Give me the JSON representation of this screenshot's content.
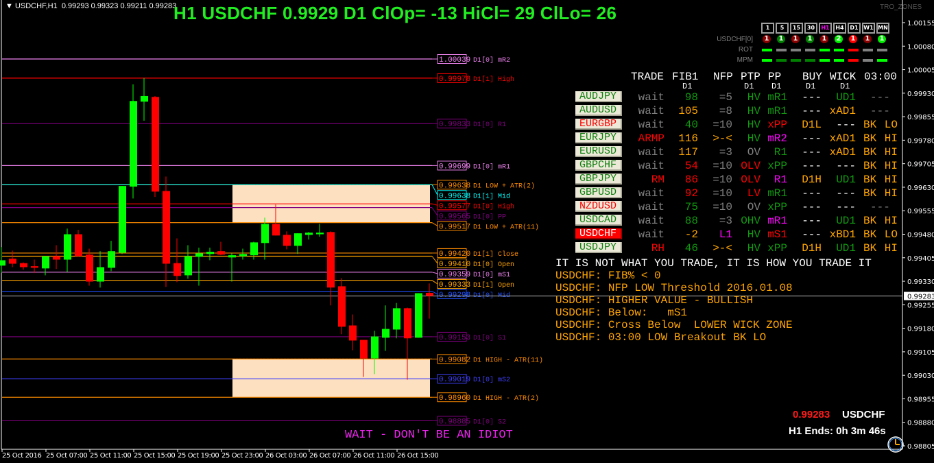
{
  "header": {
    "symbol_tf": "USDCHF,H1",
    "ohlc": "0.99293 0.99323 0.99211 0.99283"
  },
  "title": "H1 USDCHF 0.9929 D1 ClOp= -13 HiCl= 29 ClLo= 26",
  "brand": "TRO_ZONES",
  "timeframes": [
    {
      "label": "1",
      "color": "#ffffff"
    },
    {
      "label": "5",
      "color": "#ffffff"
    },
    {
      "label": "15",
      "color": "#ffffff"
    },
    {
      "label": "30",
      "color": "#ffffff"
    },
    {
      "label": "H1",
      "color": "#ff00ff"
    },
    {
      "label": "H4",
      "color": "#ffffff"
    },
    {
      "label": "D1",
      "color": "#ffffff"
    },
    {
      "label": "W1",
      "color": "#ffffff"
    },
    {
      "label": "MN",
      "color": "#ffffff"
    }
  ],
  "signals": {
    "label": "USDCHF[0]",
    "circles": [
      {
        "value": "1",
        "color": "#8b0000"
      },
      {
        "value": "1",
        "color": "#008000"
      },
      {
        "value": "1",
        "color": "#8b0000"
      },
      {
        "value": "1",
        "color": "#008000"
      },
      {
        "value": "1",
        "color": "#8b0000"
      },
      {
        "value": "2",
        "color": "#00ee00"
      },
      {
        "value": "1",
        "color": "#ff0000"
      },
      {
        "value": "1",
        "color": "#8b0000"
      },
      {
        "value": "1",
        "color": "#00ee00"
      }
    ],
    "rot_label": "ROT",
    "rot": [
      "#00ff00",
      "#808080",
      "#808080",
      "#808080",
      "#00ff00",
      "#00ff00",
      "#ff0000",
      "#808080",
      "#808080"
    ],
    "mpm_label": "MPM",
    "mpm": [
      "#00ff00",
      "#008000",
      "#008000",
      "#008000",
      "#00ff00",
      "#00ff00",
      "#ff0000",
      "#808080",
      "#00ff00"
    ]
  },
  "table": {
    "headers": [
      "TRADE",
      "FIB1",
      "NFP",
      "PTP",
      "PP",
      "BUY",
      "WICK",
      "03:00"
    ],
    "subheaders": {
      "FIB1": "D1",
      "PTP": "D1",
      "PP": "D1",
      "BUY": "D1",
      "WICK": "D1"
    },
    "colors": {
      "g": "#808080",
      "G": "#109a10",
      "O": "#ffa500",
      "R": "#ff0000",
      "M": "#ff00ff",
      "W": "#ffffff"
    },
    "rows": [
      {
        "symbol": "AUDJPY",
        "sym_color": "#108010",
        "active": false,
        "cells": [
          [
            "wait",
            "g"
          ],
          [
            "98",
            "G"
          ],
          [
            "=5",
            "g"
          ],
          [
            "HV",
            "G"
          ],
          [
            "mR1",
            "G"
          ],
          [
            "---",
            "W"
          ],
          [
            "UD1",
            "G"
          ],
          [
            "---",
            "g"
          ]
        ]
      },
      {
        "symbol": "AUDUSD",
        "sym_color": "#108010",
        "active": false,
        "cells": [
          [
            "wait",
            "g"
          ],
          [
            "105",
            "O"
          ],
          [
            "=8",
            "g"
          ],
          [
            "HV",
            "G"
          ],
          [
            "mR1",
            "G"
          ],
          [
            "---",
            "W"
          ],
          [
            "xAD1",
            "O"
          ],
          [
            "---",
            "g"
          ]
        ]
      },
      {
        "symbol": "EURGBP",
        "sym_color": "#ff0000",
        "active": false,
        "cells": [
          [
            "wait",
            "g"
          ],
          [
            "40",
            "G"
          ],
          [
            "=10",
            "g"
          ],
          [
            "HV",
            "G"
          ],
          [
            "xPP",
            "R"
          ],
          [
            "D1L",
            "O"
          ],
          [
            "---",
            "W"
          ],
          [
            "BK LO",
            "O"
          ]
        ]
      },
      {
        "symbol": "EURJPY",
        "sym_color": "#108010",
        "active": false,
        "cells": [
          [
            "ARMP",
            "R"
          ],
          [
            "116",
            "O"
          ],
          [
            ">-<",
            "O"
          ],
          [
            "HV",
            "G"
          ],
          [
            "mR2",
            "M"
          ],
          [
            "---",
            "W"
          ],
          [
            "xAD1",
            "O"
          ],
          [
            "BK HI",
            "O"
          ]
        ]
      },
      {
        "symbol": "EURUSD",
        "sym_color": "#108010",
        "active": false,
        "cells": [
          [
            "wait",
            "g"
          ],
          [
            "117",
            "O"
          ],
          [
            "=3",
            "g"
          ],
          [
            "OV",
            "g"
          ],
          [
            "R1",
            "G"
          ],
          [
            "---",
            "W"
          ],
          [
            "xAD1",
            "O"
          ],
          [
            "BK HI",
            "O"
          ]
        ]
      },
      {
        "symbol": "GBPCHF",
        "sym_color": "#108010",
        "active": false,
        "cells": [
          [
            "wait",
            "g"
          ],
          [
            "54",
            "R"
          ],
          [
            "=10",
            "g"
          ],
          [
            "OLV",
            "R"
          ],
          [
            "xPP",
            "G"
          ],
          [
            "---",
            "W"
          ],
          [
            "---",
            "W"
          ],
          [
            "BK HI",
            "O"
          ]
        ]
      },
      {
        "symbol": "GBPJPY",
        "sym_color": "#108010",
        "active": false,
        "cells": [
          [
            "RM",
            "R"
          ],
          [
            "86",
            "R"
          ],
          [
            "=10",
            "g"
          ],
          [
            "OLV",
            "R"
          ],
          [
            "R1",
            "M"
          ],
          [
            "D1H",
            "O"
          ],
          [
            "UD1",
            "G"
          ],
          [
            "BK HI",
            "O"
          ]
        ]
      },
      {
        "symbol": "GBPUSD",
        "sym_color": "#108010",
        "active": false,
        "cells": [
          [
            "wait",
            "g"
          ],
          [
            "92",
            "R"
          ],
          [
            "=10",
            "g"
          ],
          [
            "LV",
            "R"
          ],
          [
            "mR1",
            "G"
          ],
          [
            "---",
            "W"
          ],
          [
            "---",
            "W"
          ],
          [
            "BK HI",
            "O"
          ]
        ]
      },
      {
        "symbol": "NZDUSD",
        "sym_color": "#ff0000",
        "active": false,
        "cells": [
          [
            "wait",
            "g"
          ],
          [
            "75",
            "G"
          ],
          [
            "=10",
            "g"
          ],
          [
            "OV",
            "g"
          ],
          [
            "xPP",
            "G"
          ],
          [
            "---",
            "W"
          ],
          [
            "---",
            "W"
          ],
          [
            "---",
            "g"
          ]
        ]
      },
      {
        "symbol": "USDCAD",
        "sym_color": "#108010",
        "active": false,
        "cells": [
          [
            "wait",
            "g"
          ],
          [
            "88",
            "G"
          ],
          [
            "=3",
            "g"
          ],
          [
            "OHV",
            "G"
          ],
          [
            "mR1",
            "M"
          ],
          [
            "---",
            "W"
          ],
          [
            "UD1",
            "G"
          ],
          [
            "BK HI",
            "O"
          ]
        ]
      },
      {
        "symbol": "USDCHF",
        "sym_color": "#ffffff",
        "active": true,
        "cells": [
          [
            "wait",
            "g"
          ],
          [
            "-2",
            "O"
          ],
          [
            "L1",
            "M"
          ],
          [
            "HV",
            "G"
          ],
          [
            "mS1",
            "R"
          ],
          [
            "---",
            "W"
          ],
          [
            "xBD1",
            "O"
          ],
          [
            "BK LO",
            "O"
          ]
        ]
      },
      {
        "symbol": "USDJPY",
        "sym_color": "#108010",
        "active": false,
        "cells": [
          [
            "RH",
            "R"
          ],
          [
            "46",
            "G"
          ],
          [
            ">-<",
            "O"
          ],
          [
            "HV",
            "G"
          ],
          [
            "xPP",
            "G"
          ],
          [
            "D1H",
            "O"
          ],
          [
            "UD1",
            "G"
          ],
          [
            "BK HI",
            "O"
          ]
        ]
      }
    ]
  },
  "messages": [
    "IT IS NOT WHAT YOU TRADE, IT IS HOW YOU TRADE IT",
    "USDCHF: FIB% < 0",
    "USDCHF: NFP LOW Threshold 2016.01.08",
    "USDCHF: HIGHER VALUE - BULLISH",
    "USDCHF: Below:   mS1",
    "USDCHF: Cross Below  LOWER WICK ZONE",
    "USDCHF: 03:00 LOW Breakout BK LO"
  ],
  "warning": "WAIT - DON'T BE AN IDIOT",
  "status": {
    "bid": "0.99283",
    "symbol": "USDCHF",
    "bar_end": "H1 Ends: 0h 3m 46s"
  },
  "chart_data": {
    "type": "candlestick",
    "symbol": "USDCHF",
    "timeframe": "H1",
    "ylim": [
      0.98805,
      1.00155
    ],
    "y_ticks": [
      "1.00155",
      "1.00080",
      "1.00005",
      "0.99930",
      "0.99855",
      "0.99780",
      "0.99705",
      "0.99630",
      "0.99555",
      "0.99480",
      "0.99405",
      "0.99330",
      "0.99255",
      "0.99180",
      "0.99105",
      "0.99030",
      "0.98955",
      "0.98880",
      "0.98805"
    ],
    "x_ticks": [
      "25 Oct 2016",
      "25 Oct 07:00",
      "25 Oct 11:00",
      "25 Oct 15:00",
      "25 Oct 19:00",
      "25 Oct 23:00",
      "26 Oct 03:00",
      "26 Oct 07:00",
      "26 Oct 11:00",
      "26 Oct 15:00"
    ],
    "current_price": "0.99283",
    "candles": [
      [
        0.9938,
        0.99439,
        0.99358,
        0.99397
      ],
      [
        0.99402,
        0.99428,
        0.99375,
        0.99386
      ],
      [
        0.99388,
        0.9939,
        0.99367,
        0.99375
      ],
      [
        0.99378,
        0.99399,
        0.99356,
        0.99373
      ],
      [
        0.99371,
        0.9941,
        0.99349,
        0.9941
      ],
      [
        0.9941,
        0.99445,
        0.99369,
        0.99399
      ],
      [
        0.99399,
        0.99498,
        0.9936,
        0.9948
      ],
      [
        0.9948,
        0.99494,
        0.99408,
        0.9941
      ],
      [
        0.99415,
        0.99434,
        0.99316,
        0.99329
      ],
      [
        0.99329,
        0.99426,
        0.9931,
        0.99375
      ],
      [
        0.99373,
        0.99459,
        0.99362,
        0.99426
      ],
      [
        0.99421,
        0.99634,
        0.99417,
        0.99634
      ],
      [
        0.99632,
        0.99958,
        0.99594,
        0.99905
      ],
      [
        0.99903,
        0.99978,
        0.99842,
        0.99921
      ],
      [
        0.99918,
        0.99921,
        0.99599,
        0.99616
      ],
      [
        0.99618,
        0.99664,
        0.99312,
        0.99386
      ],
      [
        0.99388,
        0.99467,
        0.99327,
        0.99347
      ],
      [
        0.99349,
        0.99445,
        0.99338,
        0.9941
      ],
      [
        0.99408,
        0.99437,
        0.99316,
        0.99419
      ],
      [
        0.99417,
        0.99437,
        0.99397,
        0.99424
      ],
      [
        0.99426,
        0.99456,
        0.99413,
        0.99415
      ],
      [
        0.99406,
        0.99419,
        0.99329,
        0.99413
      ],
      [
        0.9941,
        0.99434,
        0.99399,
        0.99417
      ],
      [
        0.99413,
        0.99456,
        0.99399,
        0.99454
      ],
      [
        0.99452,
        0.99533,
        0.99399,
        0.99513
      ],
      [
        0.99513,
        0.99575,
        0.99476,
        0.99476
      ],
      [
        0.99478,
        0.99489,
        0.99432,
        0.99443
      ],
      [
        0.99443,
        0.99483,
        0.99417,
        0.99483
      ],
      [
        0.99478,
        0.99487,
        0.99463,
        0.99485
      ],
      [
        0.9948,
        0.99513,
        0.99472,
        0.99485
      ],
      [
        0.99487,
        0.99489,
        0.99253,
        0.9931
      ],
      [
        0.99314,
        0.9934,
        0.99161,
        0.99185
      ],
      [
        0.99189,
        0.99224,
        0.9911,
        0.99141
      ],
      [
        0.99143,
        0.99143,
        0.99025,
        0.99084
      ],
      [
        0.99084,
        0.99172,
        0.99034,
        0.99154
      ],
      [
        0.9915,
        0.99253,
        0.99108,
        0.99178
      ],
      [
        0.99176,
        0.99261,
        0.99148,
        0.99244
      ],
      [
        0.99244,
        0.99246,
        0.99016,
        0.99148
      ],
      [
        0.9915,
        0.99292,
        0.9915,
        0.99292
      ],
      [
        0.99293,
        0.99323,
        0.99211,
        0.99283
      ]
    ],
    "zones": [
      {
        "top": 0.99638,
        "bottom": 0.99517,
        "color": "#fde0c0"
      },
      {
        "top": 0.99082,
        "bottom": 0.9896,
        "color": "#fde0c0"
      }
    ],
    "levels": [
      {
        "price": "1.00039",
        "label": "D1[0] mR2",
        "color": "#ee82ee"
      },
      {
        "price": "0.99978",
        "label": "D1[1] High",
        "color": "#ff0000"
      },
      {
        "price": "0.99833",
        "label": "D1[0] R1",
        "color": "#800080"
      },
      {
        "price": "0.99699",
        "label": "D1[0] mR1",
        "color": "#ee82ee"
      },
      {
        "price": "0.99638",
        "label": "D1 LOW + ATR(2)",
        "color": "#ff8c00"
      },
      {
        "price": "0.99638",
        "label": "D1[1] Mid",
        "color": "#00ffff"
      },
      {
        "price": "0.99577",
        "label": "D1[0] High",
        "color": "#ff0000"
      },
      {
        "price": "0.99565",
        "label": "D1[0] PP",
        "color": "#800080"
      },
      {
        "price": "0.99517",
        "label": "D1 LOW + ATR(11)",
        "color": "#ff8c00"
      },
      {
        "price": "0.99420",
        "label": "D1[1] Close",
        "color": "#ff8c00"
      },
      {
        "price": "0.99410",
        "label": "D1[0] Open",
        "color": "#ffa500"
      },
      {
        "price": "0.99359",
        "label": "D1[0] mS1",
        "color": "#ee82ee"
      },
      {
        "price": "0.99333",
        "label": "D1[1] Open",
        "color": "#ffa500"
      },
      {
        "price": "0.99298",
        "label": "D1[0] Mid",
        "color": "#1e50ff"
      },
      {
        "price": "0.99153",
        "label": "D1[0] S1",
        "color": "#800080"
      },
      {
        "price": "0.99082",
        "label": "D1 HIGH - ATR(11)",
        "color": "#ff8c00"
      },
      {
        "price": "0.99019",
        "label": "D1[0] mS2",
        "color": "#4040ff"
      },
      {
        "price": "0.98960",
        "label": "D1 HIGH - ATR(2)",
        "color": "#ff8c00"
      },
      {
        "price": "0.98885",
        "label": "D1[0] S2",
        "color": "#800080"
      }
    ]
  }
}
